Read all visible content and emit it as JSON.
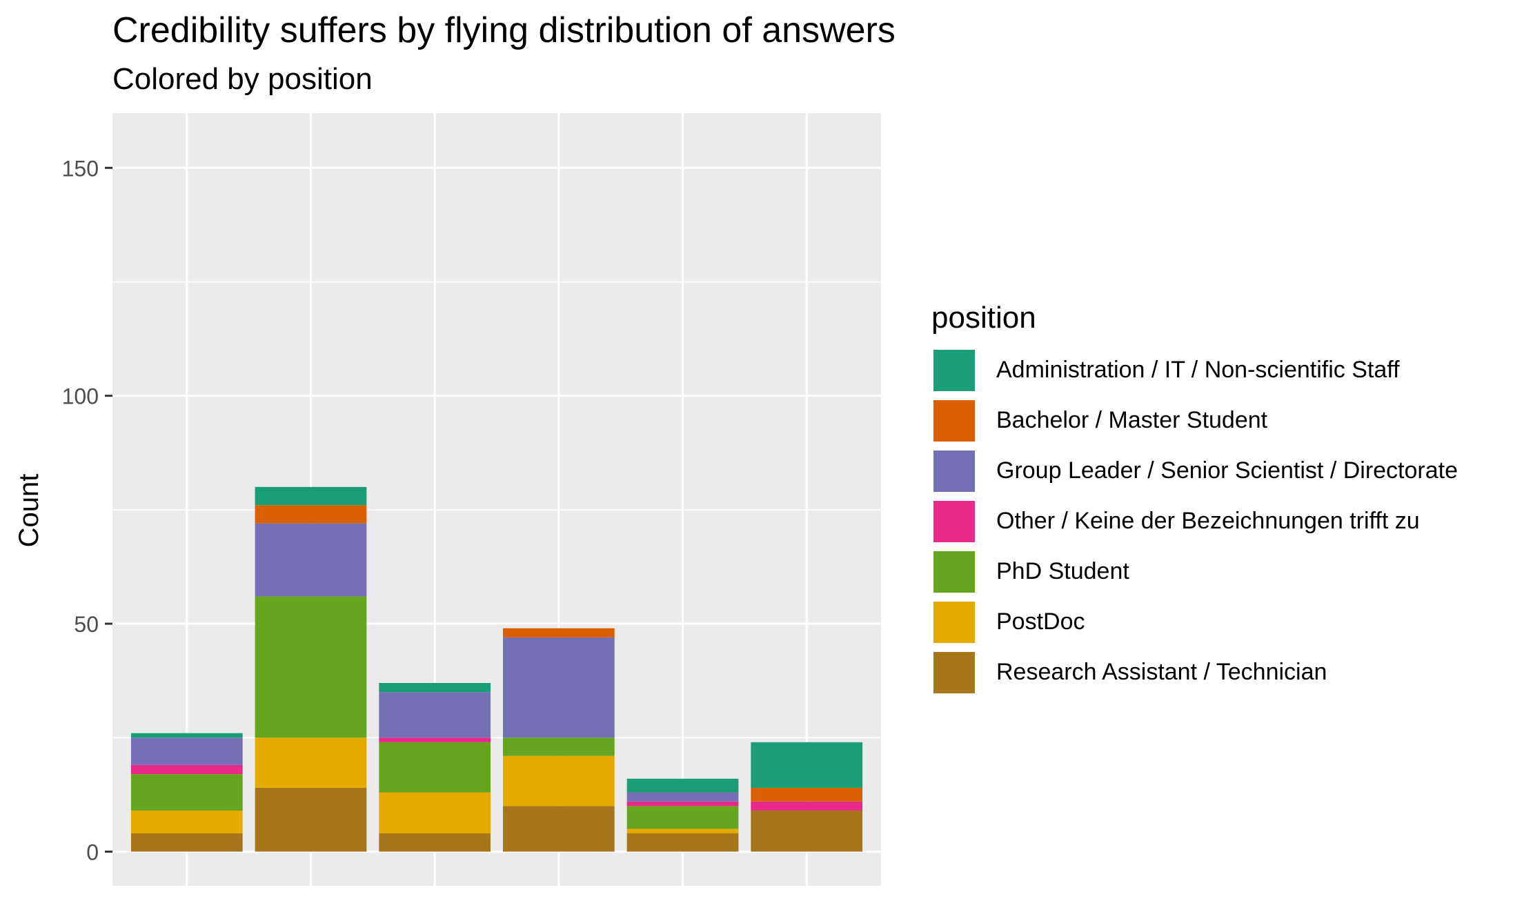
{
  "chart_data": {
    "type": "bar",
    "stacked": true,
    "title": "Credibility suffers by flying distribution of answers",
    "subtitle": "Colored by  position",
    "xlabel": "",
    "ylabel": "Count",
    "ylim": [
      -7.5,
      162
    ],
    "yticks": [
      0,
      50,
      100,
      150
    ],
    "grid": true,
    "legend_title": "position",
    "legend_position": "right",
    "categories": [
      "",
      "",
      "",
      "",
      "",
      ""
    ],
    "series": [
      {
        "name": "Research Assistant / Technician",
        "color": "#A6761D",
        "values": [
          4,
          14,
          4,
          10,
          4,
          9
        ]
      },
      {
        "name": "PostDoc",
        "color": "#E6AB02",
        "values": [
          5,
          11,
          9,
          11,
          1,
          0
        ]
      },
      {
        "name": "PhD Student",
        "color": "#66A61E",
        "values": [
          8,
          31,
          11,
          4,
          5,
          0
        ]
      },
      {
        "name": "Other / Keine der Bezeichnungen trifft zu",
        "color": "#E7298A",
        "values": [
          2,
          0,
          1,
          0,
          1,
          2
        ]
      },
      {
        "name": "Group Leader / Senior Scientist / Directorate",
        "color": "#7570B3",
        "values": [
          6,
          16,
          10,
          22,
          2,
          0
        ]
      },
      {
        "name": "Bachelor / Master Student",
        "color": "#D95F02",
        "values": [
          0,
          4,
          0,
          2,
          0,
          3
        ]
      },
      {
        "name": "Administration / IT / Non-scientific Staff",
        "color": "#1B9E77",
        "values": [
          1,
          4,
          2,
          0,
          3,
          10
        ]
      }
    ],
    "legend_order": [
      "Administration / IT / Non-scientific Staff",
      "Bachelor / Master Student",
      "Group Leader / Senior Scientist / Directorate",
      "Other / Keine der Bezeichnungen trifft zu",
      "PhD Student",
      "PostDoc",
      "Research Assistant / Technician"
    ],
    "panel_background": "#EBEBEB",
    "grid_color": "#FFFFFF"
  }
}
